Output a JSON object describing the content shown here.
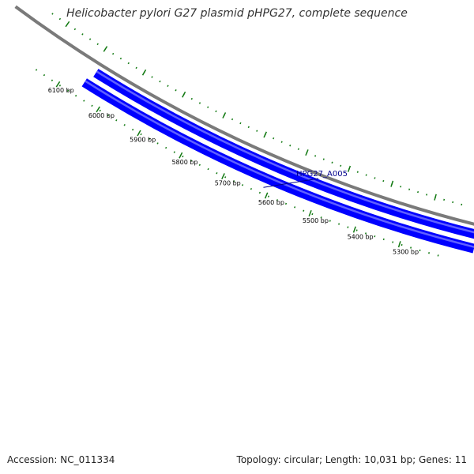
{
  "title": "Helicobacter pylori G27 plasmid pHPG27, complete sequence",
  "footer": {
    "accession": "Accession: NC_011334",
    "summary": "Topology: circular; Length: 10,031 bp; Genes: 11"
  },
  "map": {
    "tick_labels": [
      "6100 bp",
      "6000 bp",
      "5900 bp",
      "5800 bp",
      "5700 bp",
      "5600 bp",
      "5500 bp",
      "5400 bp",
      "5300 bp"
    ],
    "genes": [
      {
        "label": "HPG27_A005",
        "strand": "forward"
      },
      {
        "label": "",
        "strand": "reverse"
      }
    ],
    "colors": {
      "gene": "#0000ff",
      "gene_highlight": "#6a6aff",
      "ticks": "#137a13",
      "backbone": "#7a7a7a",
      "label": "#00008b"
    }
  }
}
